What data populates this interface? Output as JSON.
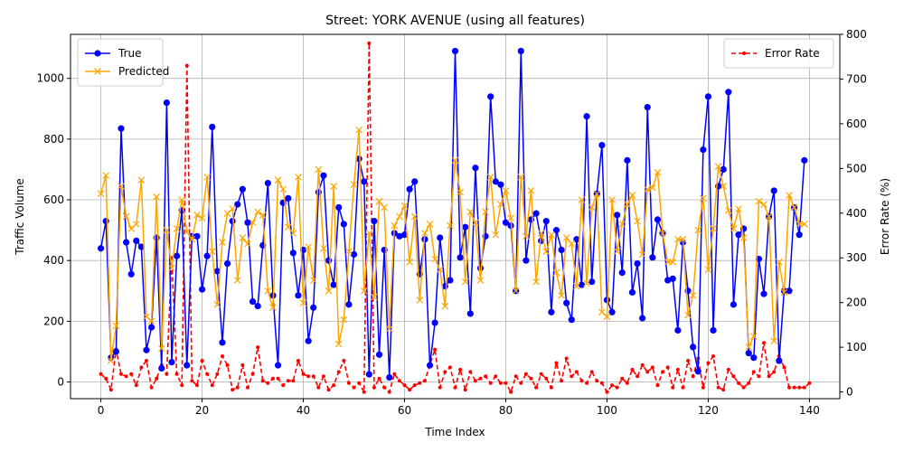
{
  "chart_data": {
    "type": "line",
    "title": "Street: YORK AVENUE (using all features)",
    "xlabel": "Time Index",
    "ylabel_left": "Traffic Volume",
    "ylabel_right": "Error Rate (%)",
    "xlim": [
      -6,
      146
    ],
    "ylim_left": [
      -55,
      1145
    ],
    "ylim_right": [
      -15,
      800
    ],
    "xticks": [
      0,
      20,
      40,
      60,
      80,
      100,
      120,
      140
    ],
    "yticks_left": [
      0,
      200,
      400,
      600,
      800,
      1000
    ],
    "yticks_right": [
      0,
      100,
      200,
      300,
      400,
      500,
      600,
      700,
      800
    ],
    "grid": true,
    "legend_left": {
      "placement": "upper-left",
      "entries": [
        "True",
        "Predicted"
      ]
    },
    "legend_right": {
      "placement": "upper-right",
      "entries": [
        "Error Rate"
      ]
    },
    "series": [
      {
        "name": "True",
        "axis": "left",
        "color": "#0000ff",
        "marker": "circle",
        "values": [
          440,
          530,
          80,
          100,
          835,
          460,
          355,
          465,
          445,
          105,
          180,
          475,
          45,
          920,
          65,
          415,
          565,
          55,
          480,
          480,
          305,
          415,
          840,
          365,
          130,
          390,
          530,
          585,
          635,
          525,
          265,
          250,
          450,
          655,
          285,
          55,
          590,
          605,
          425,
          285,
          435,
          135,
          245,
          625,
          680,
          400,
          320,
          575,
          520,
          255,
          420,
          735,
          660,
          25,
          530,
          90,
          435,
          15,
          490,
          480,
          485,
          635,
          660,
          355,
          470,
          55,
          195,
          475,
          315,
          335,
          1090,
          410,
          510,
          225,
          705,
          375,
          480,
          940,
          660,
          650,
          525,
          515,
          300,
          1090,
          400,
          535,
          555,
          465,
          530,
          230,
          500,
          435,
          260,
          205,
          470,
          320,
          875,
          330,
          620,
          780,
          270,
          230,
          550,
          360,
          730,
          295,
          390,
          210,
          905,
          410,
          535,
          490,
          335,
          340,
          170,
          460,
          300,
          115,
          35,
          765,
          940,
          170,
          645,
          700,
          955,
          255,
          485,
          505,
          95,
          80,
          405,
          290,
          545,
          630,
          70,
          300,
          300,
          575,
          485,
          730
        ]
      },
      {
        "name": "Predicted",
        "axis": "left",
        "color": "#ffa500",
        "marker": "x",
        "values": [
          620,
          680,
          70,
          185,
          645,
          545,
          505,
          520,
          665,
          215,
          200,
          610,
          110,
          500,
          375,
          505,
          600,
          495,
          470,
          550,
          540,
          675,
          430,
          255,
          460,
          555,
          570,
          335,
          475,
          455,
          525,
          560,
          550,
          300,
          245,
          665,
          635,
          510,
          490,
          675,
          260,
          445,
          335,
          700,
          440,
          300,
          645,
          125,
          205,
          430,
          650,
          830,
          300,
          490,
          280,
          595,
          575,
          175,
          515,
          545,
          580,
          395,
          545,
          270,
          490,
          520,
          405,
          370,
          250,
          515,
          730,
          625,
          330,
          560,
          525,
          335,
          560,
          675,
          485,
          585,
          630,
          540,
          300,
          675,
          480,
          630,
          330,
          490,
          430,
          485,
          360,
          285,
          475,
          455,
          315,
          600,
          325,
          575,
          620,
          230,
          215,
          600,
          430,
          520,
          585,
          615,
          530,
          420,
          635,
          640,
          690,
          490,
          395,
          395,
          470,
          470,
          220,
          285,
          500,
          605,
          370,
          505,
          710,
          645,
          565,
          505,
          570,
          475,
          115,
          150,
          595,
          585,
          545,
          135,
          395,
          295,
          615,
          575,
          520,
          520
        ]
      },
      {
        "name": "Error Rate",
        "axis": "right",
        "color": "#ff0000",
        "marker": "dot",
        "dashed": true,
        "values": [
          40,
          30,
          5,
          95,
          40,
          35,
          40,
          15,
          55,
          70,
          10,
          30,
          60,
          40,
          300,
          40,
          15,
          730,
          25,
          15,
          70,
          40,
          15,
          40,
          80,
          60,
          5,
          10,
          60,
          10,
          40,
          100,
          25,
          20,
          30,
          30,
          15,
          25,
          25,
          70,
          40,
          35,
          35,
          10,
          35,
          5,
          15,
          45,
          70,
          20,
          10,
          20,
          0,
          780,
          10,
          30,
          10,
          0,
          40,
          25,
          15,
          5,
          15,
          20,
          25,
          60,
          95,
          10,
          45,
          55,
          10,
          50,
          5,
          45,
          25,
          30,
          35,
          20,
          35,
          20,
          20,
          0,
          35,
          20,
          40,
          30,
          10,
          40,
          30,
          10,
          65,
          25,
          75,
          35,
          45,
          25,
          20,
          45,
          25,
          20,
          0,
          15,
          10,
          30,
          20,
          50,
          35,
          60,
          45,
          55,
          15,
          45,
          55,
          10,
          50,
          10,
          70,
          35,
          75,
          10,
          65,
          80,
          10,
          5,
          50,
          35,
          20,
          10,
          20,
          45,
          35,
          110,
          35,
          45,
          80,
          55,
          10,
          10,
          10,
          10,
          20
        ]
      }
    ]
  }
}
